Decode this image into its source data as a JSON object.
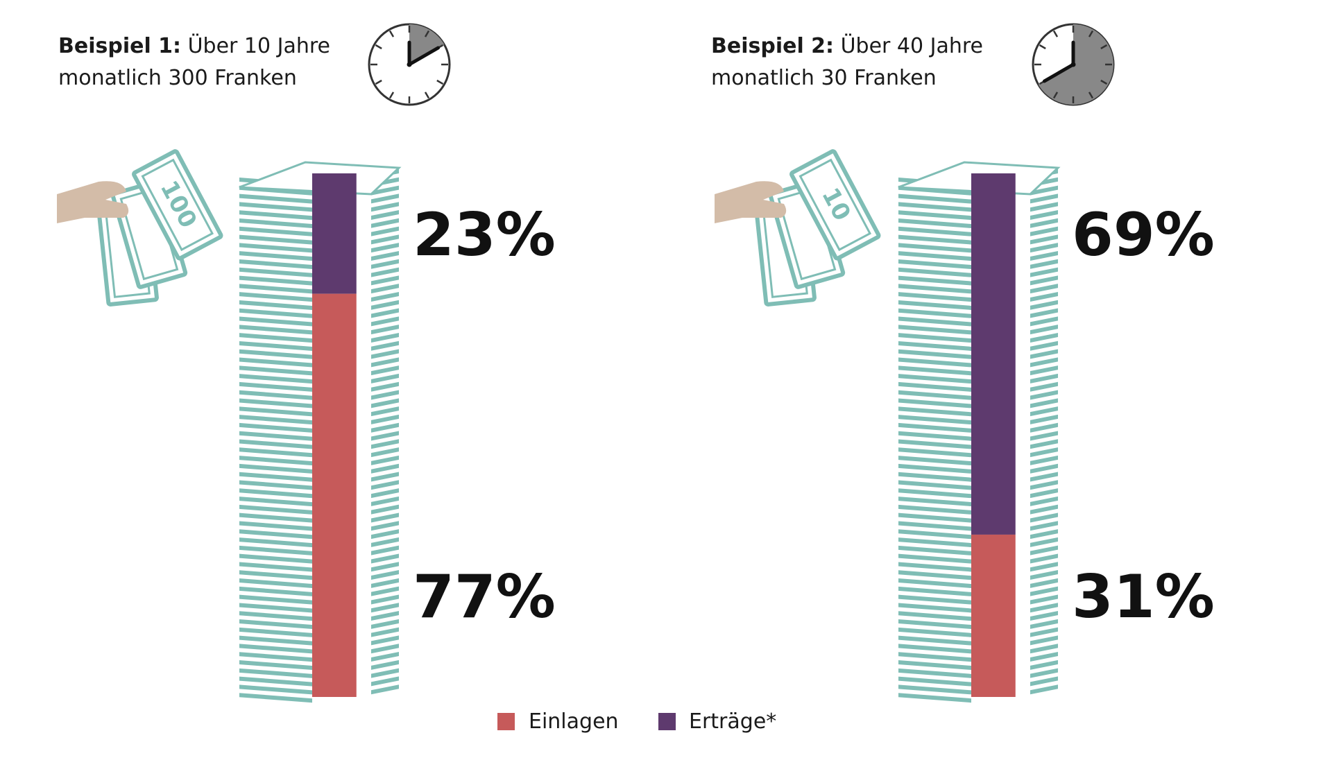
{
  "examples": [
    {
      "heading_bold": "Beispiel 1:",
      "heading_rest": " Über 10 Jahre",
      "subheading": "monatlich 300 Franken",
      "years": 10,
      "banknote_value": "100"
    },
    {
      "heading_bold": "Beispiel 2:",
      "heading_rest": " Über 40 Jahre",
      "subheading": "monatlich 30 Franken",
      "years": 40,
      "banknote_value": "10"
    }
  ],
  "legend": {
    "einlagen": "Einlagen",
    "ertraege": "Erträge*"
  },
  "colors": {
    "einlagen": "#c65a5a",
    "ertraege": "#5e3a6e",
    "banknote": "#7fbdb5",
    "clock_fill": "#888888",
    "hand": "#d3bca8"
  },
  "chart_data": [
    {
      "type": "bar",
      "stacked": true,
      "categories": [
        "Beispiel 1"
      ],
      "series": [
        {
          "name": "Erträge*",
          "values": [
            23
          ]
        },
        {
          "name": "Einlagen",
          "values": [
            77
          ]
        }
      ],
      "labels": [
        "23%",
        "77%"
      ],
      "ylim": [
        0,
        100
      ]
    },
    {
      "type": "bar",
      "stacked": true,
      "categories": [
        "Beispiel 2"
      ],
      "series": [
        {
          "name": "Erträge*",
          "values": [
            69
          ]
        },
        {
          "name": "Einlagen",
          "values": [
            31
          ]
        }
      ],
      "labels": [
        "69%",
        "31%"
      ],
      "ylim": [
        0,
        100
      ]
    }
  ]
}
